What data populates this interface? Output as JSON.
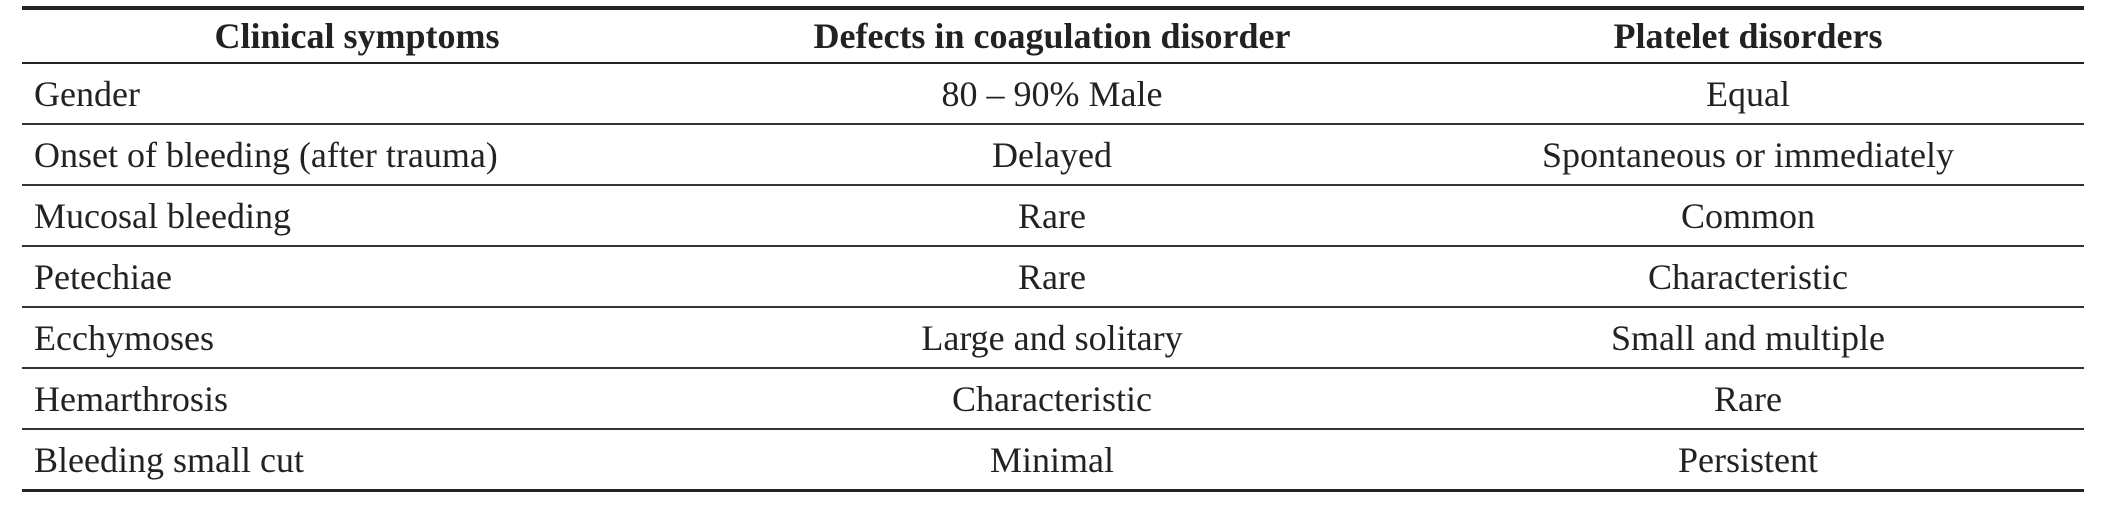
{
  "table": {
    "header": [
      "Clinical symptoms",
      "Defects in coagulation disorder",
      "Platelet disorders"
    ],
    "rows": [
      [
        "Gender",
        "80 – 90% Male",
        "Equal"
      ],
      [
        "Onset of bleeding (after trauma)",
        "Delayed",
        "Spontaneous or immediately"
      ],
      [
        "Mucosal bleeding",
        "Rare",
        "Common"
      ],
      [
        "Petechiae",
        "Rare",
        "Characteristic"
      ],
      [
        "Ecchymoses",
        "Large and solitary",
        "Small and multiple"
      ],
      [
        "Hemarthrosis",
        "Characteristic",
        "Rare"
      ],
      [
        "Bleeding small cut",
        "Minimal",
        "Persistent"
      ]
    ]
  }
}
